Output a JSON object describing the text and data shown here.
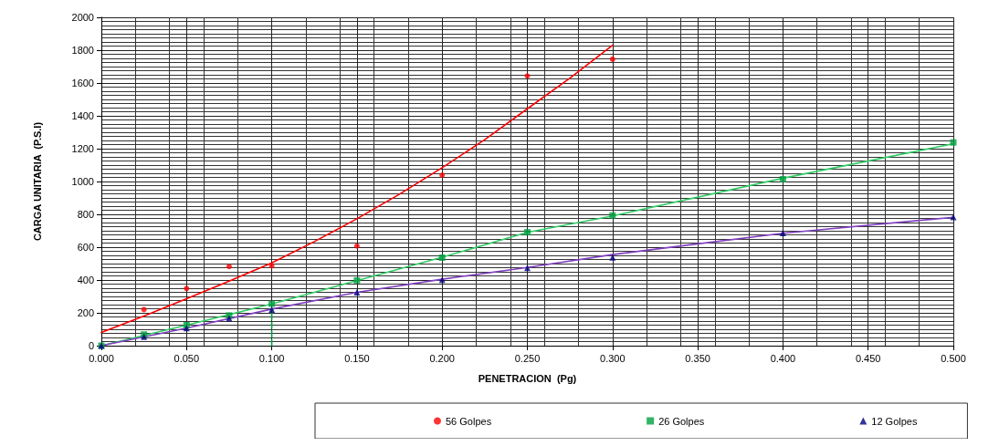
{
  "chart_data": {
    "type": "scatter",
    "xlabel": "PENETRACION  (Pg)",
    "ylabel": "CARGA UNITARIA  (P.S.I)",
    "xlim": [
      0,
      0.5
    ],
    "ylim": [
      0,
      2000
    ],
    "xticks": [
      {
        "value": 0,
        "label": "0.000"
      },
      {
        "value": 0.05,
        "label": "0.050"
      },
      {
        "value": 0.1,
        "label": "0.100"
      },
      {
        "value": 0.15,
        "label": "0.150"
      },
      {
        "value": 0.2,
        "label": "0.200"
      },
      {
        "value": 0.25,
        "label": "0.250"
      },
      {
        "value": 0.3,
        "label": "0.300"
      },
      {
        "value": 0.35,
        "label": "0.350"
      },
      {
        "value": 0.4,
        "label": "0.400"
      },
      {
        "value": 0.45,
        "label": "0.450"
      },
      {
        "value": 0.5,
        "label": "0.500"
      }
    ],
    "yticks": [
      0,
      200,
      400,
      600,
      800,
      1000,
      1200,
      1400,
      1600,
      1800,
      2000
    ],
    "grid": true,
    "legend": "bottom",
    "series": [
      {
        "name": "56 Golpes",
        "type": "scatter",
        "marker": "circle",
        "color": "#ff0000",
        "x": [
          0.025,
          0.05,
          0.075,
          0.1,
          0.15,
          0.2,
          0.25,
          0.3
        ],
        "values": [
          220,
          348,
          482,
          486,
          607,
          1039,
          1643,
          1745
        ]
      },
      {
        "name": "26 Golpes",
        "type": "scatter",
        "marker": "square",
        "color": "#00a040",
        "x": [
          0,
          0.025,
          0.05,
          0.075,
          0.1,
          0.15,
          0.2,
          0.25,
          0.3,
          0.4,
          0.5
        ],
        "values": [
          0,
          68,
          125,
          184,
          255,
          398,
          536,
          691,
          793,
          1014,
          1238
        ]
      },
      {
        "name": "12 Golpes",
        "type": "scatter",
        "marker": "triangle",
        "color": "#000080",
        "x": [
          0,
          0.025,
          0.05,
          0.075,
          0.1,
          0.15,
          0.2,
          0.25,
          0.3,
          0.4,
          0.5
        ],
        "values": [
          0,
          54,
          107,
          166,
          220,
          325,
          402,
          473,
          537,
          686,
          784
        ]
      },
      {
        "type": "line",
        "marker": "none",
        "color": "#ff0000",
        "x": [
          0,
          0.025,
          0.05,
          0.075,
          0.1,
          0.125,
          0.15,
          0.175,
          0.2,
          0.225,
          0.25,
          0.275,
          0.3
        ],
        "values": [
          80,
          180,
          286,
          393,
          504,
          634,
          773,
          923,
          1084,
          1255,
          1443,
          1630,
          1830
        ]
      },
      {
        "type": "line",
        "marker": "none",
        "color": "#33cc66",
        "x": [
          0,
          0.05,
          0.1,
          0.2,
          0.25,
          0.3,
          0.4,
          0.5
        ],
        "values": [
          0,
          125,
          254,
          539,
          690,
          790,
          1020,
          1230
        ]
      },
      {
        "type": "line",
        "marker": "none",
        "color": "#8040c0",
        "x": [
          0,
          0.05,
          0.1,
          0.15,
          0.2,
          0.25,
          0.3,
          0.4,
          0.5
        ],
        "values": [
          0,
          107,
          223,
          325,
          405,
          476,
          555,
          685,
          782
        ]
      },
      {
        "type": "line",
        "marker": "none",
        "line_style": "dashed",
        "color": "#00a040",
        "x": [
          0.1,
          0.1
        ],
        "values": [
          0,
          230
        ]
      }
    ]
  }
}
